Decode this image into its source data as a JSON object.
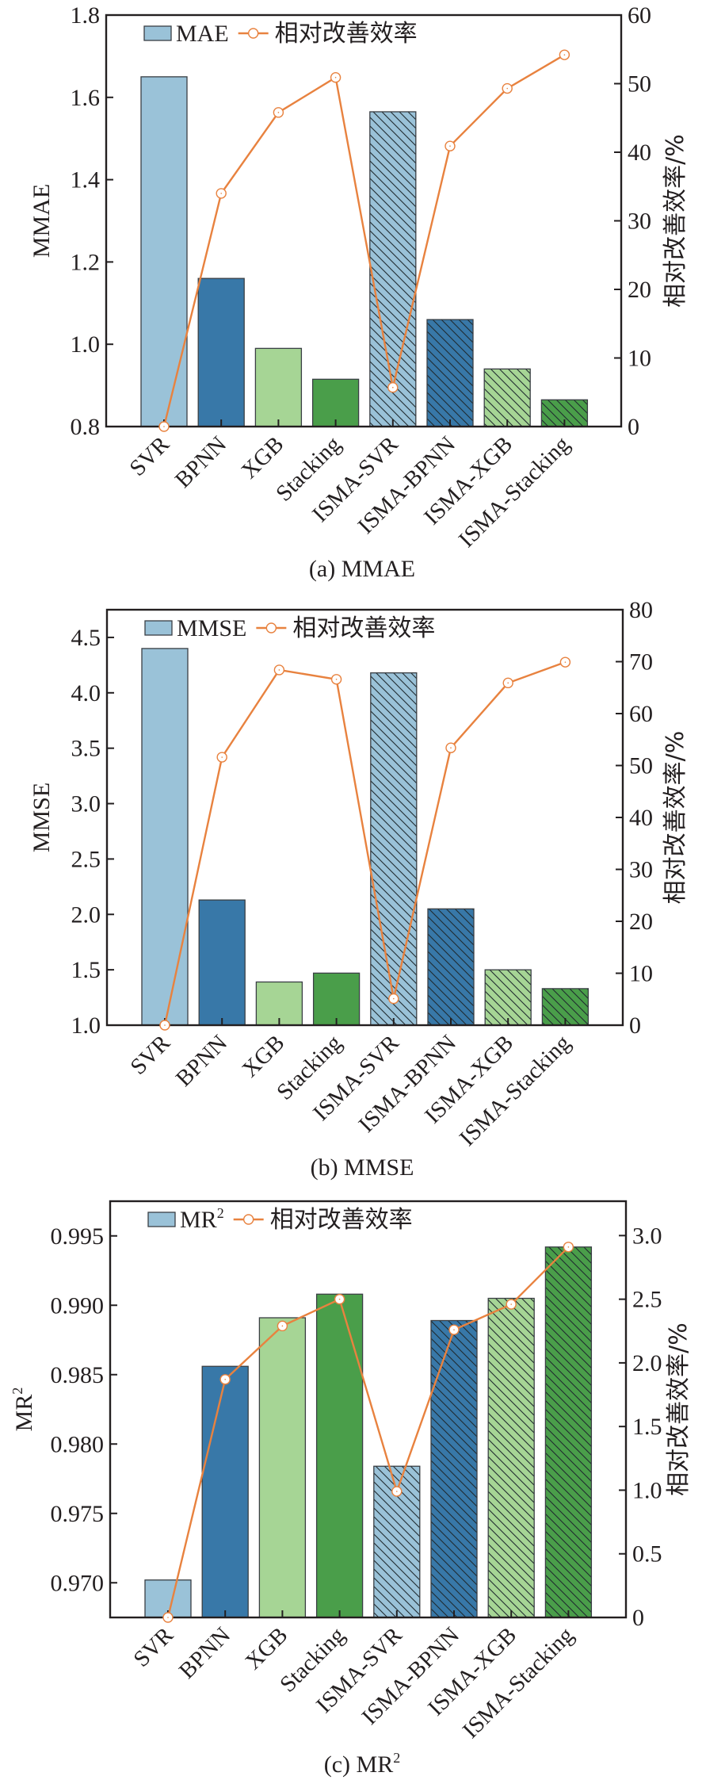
{
  "colors": {
    "light_blue": "#9ac2d8",
    "blue": "#3878a8",
    "light_green": "#a6d595",
    "green": "#4a9e4a",
    "line": "#e8823f",
    "axis": "#231f20",
    "bar_edge": "#3a3f44",
    "hatch": "#1f2a2f"
  },
  "chart_data": [
    {
      "type": "bar",
      "id": "a",
      "caption": "(a) MMAE",
      "title": "",
      "xlabel": "",
      "ylabel": "MMAE",
      "ylabel_right": "相对改善效率/%",
      "categories": [
        "SVR",
        "BPNN",
        "XGB",
        "Stacking",
        "ISMA-SVR",
        "ISMA-BPNN",
        "ISMA-XGB",
        "ISMA-Stacking"
      ],
      "bar_colors": [
        "light_blue",
        "blue",
        "light_green",
        "green",
        "light_blue",
        "blue",
        "light_green",
        "green"
      ],
      "hatched": [
        false,
        false,
        false,
        false,
        true,
        true,
        true,
        true
      ],
      "ylim": [
        0.8,
        1.8
      ],
      "yticks": [
        0.8,
        1.0,
        1.2,
        1.4,
        1.6,
        1.8
      ],
      "ytick_labels": [
        "0.8",
        "1.0",
        "1.2",
        "1.4",
        "1.6",
        "1.8"
      ],
      "ylim_right": [
        0,
        60
      ],
      "yticks_right": [
        0,
        10,
        20,
        30,
        40,
        50,
        60
      ],
      "ytick_labels_right": [
        "0",
        "10",
        "20",
        "30",
        "40",
        "50",
        "60"
      ],
      "legend": {
        "placement": "top-left",
        "bar_label": "MAE",
        "bar_label_sup": "",
        "line_label": "相对改善效率"
      },
      "series": [
        {
          "name": "MAE",
          "kind": "bar",
          "axis": "left",
          "values": [
            1.65,
            1.16,
            0.99,
            0.915,
            1.565,
            1.06,
            0.94,
            0.865
          ]
        },
        {
          "name": "相对改善效率",
          "kind": "line",
          "axis": "right",
          "values": [
            0,
            34.0,
            45.8,
            50.9,
            5.7,
            40.9,
            49.3,
            54.2
          ]
        }
      ],
      "grid": false
    },
    {
      "type": "bar",
      "id": "b",
      "caption": "(b) MMSE",
      "title": "",
      "xlabel": "",
      "ylabel": "MMSE",
      "ylabel_right": "相对改善效率/%",
      "categories": [
        "SVR",
        "BPNN",
        "XGB",
        "Stacking",
        "ISMA-SVR",
        "ISMA-BPNN",
        "ISMA-XGB",
        "ISMA-Stacking"
      ],
      "bar_colors": [
        "light_blue",
        "blue",
        "light_green",
        "green",
        "light_blue",
        "blue",
        "light_green",
        "green"
      ],
      "hatched": [
        false,
        false,
        false,
        false,
        true,
        true,
        true,
        true
      ],
      "ylim": [
        1.0,
        4.75
      ],
      "yticks": [
        1.0,
        1.5,
        2.0,
        2.5,
        3.0,
        3.5,
        4.0,
        4.5
      ],
      "ytick_labels": [
        "1.0",
        "1.5",
        "2.0",
        "2.5",
        "3.0",
        "3.5",
        "4.0",
        "4.5"
      ],
      "ylim_right": [
        0,
        80
      ],
      "yticks_right": [
        0,
        10,
        20,
        30,
        40,
        50,
        60,
        70,
        80
      ],
      "ytick_labels_right": [
        "0",
        "10",
        "20",
        "30",
        "40",
        "50",
        "60",
        "70",
        "80"
      ],
      "legend": {
        "placement": "top-left",
        "bar_label": "MMSE",
        "bar_label_sup": "",
        "line_label": "相对改善效率"
      },
      "series": [
        {
          "name": "MMSE",
          "kind": "bar",
          "axis": "left",
          "values": [
            4.4,
            2.13,
            1.39,
            1.47,
            4.18,
            2.05,
            1.5,
            1.33
          ]
        },
        {
          "name": "相对改善效率",
          "kind": "line",
          "axis": "right",
          "values": [
            0,
            51.6,
            68.4,
            66.6,
            5.1,
            53.4,
            65.9,
            69.9
          ]
        }
      ],
      "grid": false
    },
    {
      "type": "bar",
      "id": "c",
      "caption": "(c) MR",
      "caption_sup": "2",
      "title": "",
      "xlabel": "",
      "ylabel": "MR",
      "ylabel_sup": "2",
      "ylabel_right": "相对改善效率/%",
      "categories": [
        "SVR",
        "BPNN",
        "XGB",
        "Stacking",
        "ISMA-SVR",
        "ISMA-BPNN",
        "ISMA-XGB",
        "ISMA-Stacking"
      ],
      "bar_colors": [
        "light_blue",
        "blue",
        "light_green",
        "green",
        "light_blue",
        "blue",
        "light_green",
        "green"
      ],
      "hatched": [
        false,
        false,
        false,
        false,
        true,
        true,
        true,
        true
      ],
      "ylim": [
        0.9675,
        0.9975
      ],
      "yticks": [
        0.97,
        0.975,
        0.98,
        0.985,
        0.99,
        0.995
      ],
      "ytick_labels": [
        "0.970",
        "0.975",
        "0.980",
        "0.985",
        "0.990",
        "0.995"
      ],
      "ylim_right": [
        0,
        3.27
      ],
      "yticks_right": [
        0,
        0.5,
        1.0,
        1.5,
        2.0,
        2.5,
        3.0
      ],
      "ytick_labels_right": [
        "0",
        "0.5",
        "1.0",
        "1.5",
        "2.0",
        "2.5",
        "3.0"
      ],
      "legend": {
        "placement": "top-left",
        "bar_label": "MR",
        "bar_label_sup": "2",
        "line_label": "相对改善效率"
      },
      "series": [
        {
          "name": "MR²",
          "kind": "bar",
          "axis": "left",
          "values": [
            0.9702,
            0.9856,
            0.9891,
            0.9908,
            0.9784,
            0.9889,
            0.9905,
            0.9942
          ]
        },
        {
          "name": "相对改善效率",
          "kind": "line",
          "axis": "right",
          "values": [
            0,
            1.87,
            2.29,
            2.5,
            0.99,
            2.26,
            2.46,
            2.91
          ]
        }
      ],
      "grid": false
    }
  ]
}
